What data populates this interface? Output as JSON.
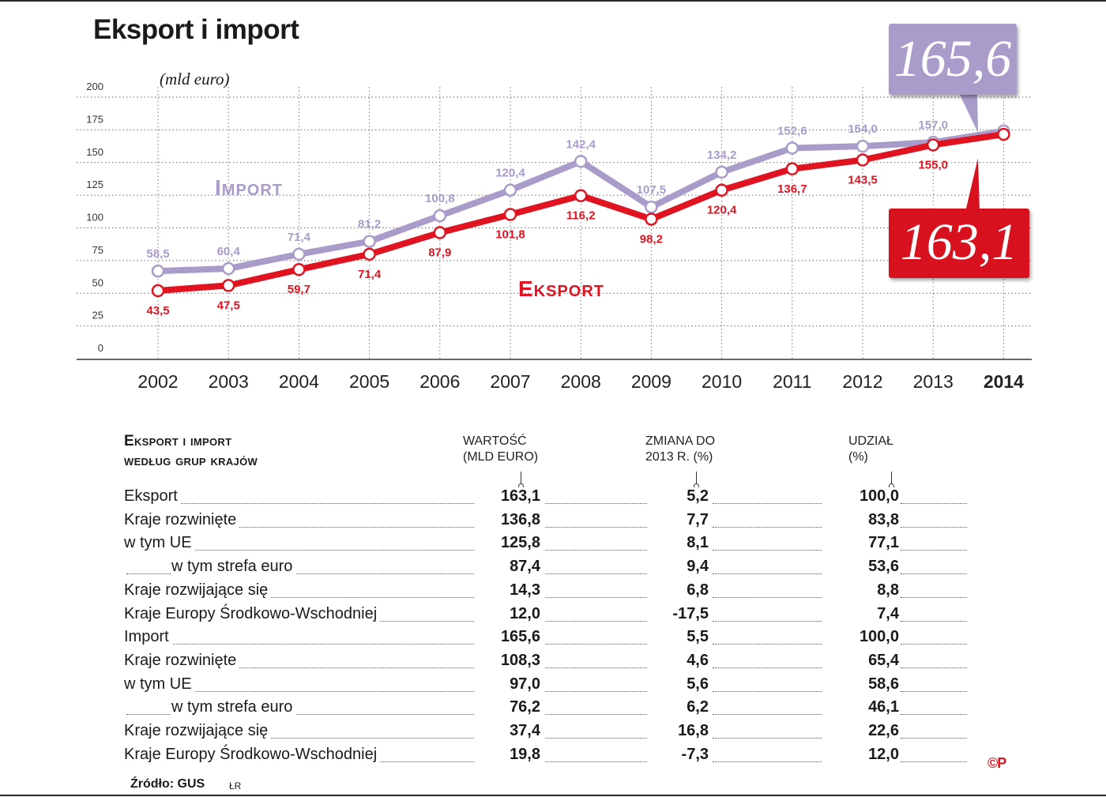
{
  "title": "Eksport i import",
  "unit": "(mld euro)",
  "series_labels": {
    "import": "Import",
    "eksport": "Eksport"
  },
  "callouts": {
    "import": "165,6",
    "eksport": "163,1"
  },
  "colors": {
    "import": "#a99ccb",
    "eksport": "#e01420",
    "callout_export_bg": "#d7111d"
  },
  "chart_data": {
    "type": "line",
    "x": [
      "2002",
      "2003",
      "2004",
      "2005",
      "2006",
      "2007",
      "2008",
      "2009",
      "2010",
      "2011",
      "2012",
      "2013",
      "2014"
    ],
    "y_ticks": [
      "0",
      "25",
      "50",
      "75",
      "100",
      "125",
      "150",
      "175",
      "200"
    ],
    "ylim": [
      0,
      200
    ],
    "grid": true,
    "series": [
      {
        "name": "Import",
        "values": [
          58.5,
          60.4,
          71.4,
          81.2,
          100.8,
          120.4,
          142.4,
          107.5,
          134.2,
          152.6,
          154.0,
          157.0,
          165.6
        ],
        "labels": [
          "58,5",
          "60,4",
          "71,4",
          "81,2",
          "100,8",
          "120,4",
          "142,4",
          "107,5",
          "134,2",
          "152,6",
          "154,0",
          "157,0",
          ""
        ]
      },
      {
        "name": "Eksport",
        "values": [
          43.5,
          47.5,
          59.7,
          71.4,
          87.9,
          101.8,
          116.2,
          98.2,
          120.4,
          136.7,
          143.5,
          155.0,
          163.1
        ],
        "labels": [
          "43,5",
          "47,5",
          "59,7",
          "71,4",
          "87,9",
          "101,8",
          "116,2",
          "98,2",
          "120,4",
          "136,7",
          "143,5",
          "155,0",
          ""
        ]
      }
    ]
  },
  "table": {
    "title_line1": "Eksport i import",
    "title_line2": "według grup krajów",
    "headers": [
      {
        "line1": "Wartość",
        "line2": "(mld euro)"
      },
      {
        "line1": "Zmiana do",
        "line2": "2013 r. (%)"
      },
      {
        "line1": "Udział",
        "line2": "(%)"
      }
    ],
    "rows": [
      {
        "label": "Eksport",
        "value": "163,1",
        "change": "5,2",
        "share": "100,0",
        "indent": false
      },
      {
        "label": "Kraje rozwinięte",
        "value": "136,8",
        "change": "7,7",
        "share": "83,8",
        "indent": false
      },
      {
        "label": "w tym UE",
        "value": "125,8",
        "change": "8,1",
        "share": "77,1",
        "indent": false
      },
      {
        "label": "w tym strefa euro",
        "value": "87,4",
        "change": "9,4",
        "share": "53,6",
        "indent": true
      },
      {
        "label": "Kraje rozwijające się",
        "value": "14,3",
        "change": "6,8",
        "share": "8,8",
        "indent": false
      },
      {
        "label": "Kraje Europy Środkowo-Wschodniej",
        "value": "12,0",
        "change": "-17,5",
        "share": "7,4",
        "indent": false
      },
      {
        "label": "Import",
        "value": "165,6",
        "change": "5,5",
        "share": "100,0",
        "indent": false
      },
      {
        "label": "Kraje rozwinięte",
        "value": "108,3",
        "change": "4,6",
        "share": "65,4",
        "indent": false
      },
      {
        "label": "w tym UE",
        "value": "97,0",
        "change": "5,6",
        "share": "58,6",
        "indent": false
      },
      {
        "label": "w tym strefa euro",
        "value": "76,2",
        "change": "6,2",
        "share": "46,1",
        "indent": true
      },
      {
        "label": "Kraje rozwijające się",
        "value": "37,4",
        "change": "16,8",
        "share": "22,6",
        "indent": false
      },
      {
        "label": "Kraje Europy Środkowo-Wschodniej",
        "value": "19,8",
        "change": "-7,3",
        "share": "12,0",
        "indent": false
      }
    ]
  },
  "source": "Źródło: GUS",
  "author": "ŁR",
  "logo": "©P"
}
